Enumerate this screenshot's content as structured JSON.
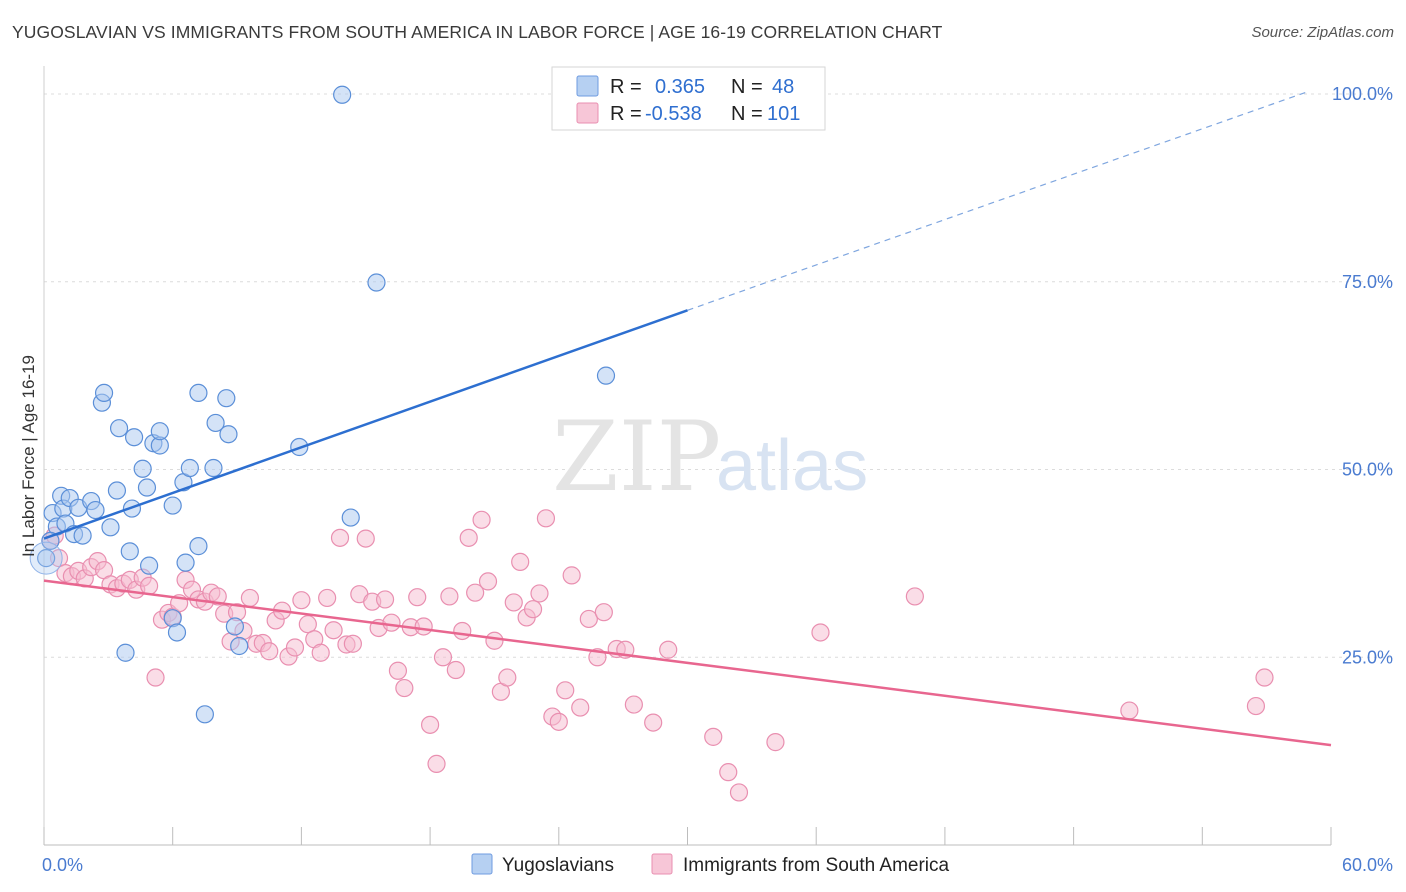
{
  "title": "YUGOSLAVIAN VS IMMIGRANTS FROM SOUTH AMERICA IN LABOR FORCE | AGE 16-19 CORRELATION CHART",
  "source": "Source: ZipAtlas.com",
  "watermark": {
    "zip": "ZIP",
    "atlas": "atlas"
  },
  "chart_data": {
    "type": "scatter",
    "xlabel": "",
    "ylabel": "In Labor Force | Age 16-19",
    "xlim": [
      0,
      60
    ],
    "ylim": [
      0,
      102
    ],
    "x_tick_labels": [
      {
        "value": 0,
        "label": "0.0%"
      },
      {
        "value": 60,
        "label": "60.0%"
      }
    ],
    "y_tick_labels": [
      {
        "value": 25,
        "label": "25.0%"
      },
      {
        "value": 50,
        "label": "50.0%"
      },
      {
        "value": 75,
        "label": "75.0%"
      },
      {
        "value": 100,
        "label": "100.0%"
      }
    ],
    "grid": "horizontal dashed",
    "legend_top": [
      {
        "r_label": "R =",
        "r_value": "0.365",
        "n_label": "N =",
        "n_value": "48",
        "color": "#a9c8f0",
        "stroke": "#6f9be0"
      },
      {
        "r_label": "R =",
        "r_value": "-0.538",
        "n_label": "N =",
        "n_value": "101",
        "color": "#f6bcd0",
        "stroke": "#e98fb0"
      }
    ],
    "series": [
      {
        "name": "Yugoslavians",
        "color": "#a9c8f0",
        "stroke": "#5b8fd8",
        "trend_color": "#2d6fd0",
        "trend": {
          "x0": 0,
          "y0": 40.8,
          "x1": 30,
          "y1": 71.2,
          "dash_to_x": 58.8,
          "dash_to_y": 100.2
        },
        "points": [
          [
            0.4,
            44.2
          ],
          [
            0.6,
            42.4
          ],
          [
            0.8,
            46.5
          ],
          [
            0.9,
            44.8
          ],
          [
            1.0,
            42.8
          ],
          [
            1.2,
            46.2
          ],
          [
            1.4,
            41.4
          ],
          [
            1.6,
            44.9
          ],
          [
            1.8,
            41.2
          ],
          [
            2.2,
            45.8
          ],
          [
            2.4,
            44.6
          ],
          [
            3.1,
            42.3
          ],
          [
            3.4,
            47.2
          ],
          [
            2.7,
            58.9
          ],
          [
            2.8,
            60.2
          ],
          [
            3.5,
            55.5
          ],
          [
            4.2,
            54.3
          ],
          [
            4.0,
            39.1
          ],
          [
            4.1,
            44.8
          ],
          [
            4.6,
            50.1
          ],
          [
            4.8,
            47.6
          ],
          [
            5.1,
            53.5
          ],
          [
            5.4,
            53.2
          ],
          [
            5.4,
            55.1
          ],
          [
            6.0,
            45.2
          ],
          [
            6.5,
            48.3
          ],
          [
            6.8,
            50.2
          ],
          [
            7.2,
            60.2
          ],
          [
            7.9,
            50.2
          ],
          [
            8.0,
            56.2
          ],
          [
            8.5,
            59.5
          ],
          [
            8.6,
            54.7
          ],
          [
            6.6,
            37.6
          ],
          [
            7.2,
            39.8
          ],
          [
            4.9,
            37.2
          ],
          [
            6.0,
            30.2
          ],
          [
            6.2,
            28.3
          ],
          [
            3.8,
            25.6
          ],
          [
            8.9,
            29.1
          ],
          [
            9.1,
            26.5
          ],
          [
            7.5,
            17.4
          ],
          [
            11.9,
            53.0
          ],
          [
            14.3,
            43.6
          ],
          [
            13.9,
            99.9
          ],
          [
            15.5,
            74.9
          ],
          [
            26.2,
            62.5
          ],
          [
            0.1,
            38.2
          ],
          [
            0.3,
            40.5
          ]
        ]
      },
      {
        "name": "Immigrants from South America",
        "color": "#f6bcd0",
        "stroke": "#e98fb0",
        "trend_color": "#e8668f",
        "trend": {
          "x0": 0,
          "y0": 35.2,
          "x1": 60,
          "y1": 13.3
        },
        "points": [
          [
            0.3,
            40.5
          ],
          [
            0.5,
            41.2
          ],
          [
            0.7,
            38.2
          ],
          [
            1.0,
            36.2
          ],
          [
            1.3,
            35.8
          ],
          [
            1.6,
            36.5
          ],
          [
            1.9,
            35.5
          ],
          [
            2.2,
            37.0
          ],
          [
            2.5,
            37.8
          ],
          [
            2.8,
            36.6
          ],
          [
            3.1,
            34.7
          ],
          [
            3.4,
            34.2
          ],
          [
            3.7,
            34.8
          ],
          [
            4.0,
            35.3
          ],
          [
            4.3,
            34.0
          ],
          [
            4.6,
            35.6
          ],
          [
            4.9,
            34.5
          ],
          [
            5.2,
            22.3
          ],
          [
            5.5,
            30.0
          ],
          [
            5.8,
            30.9
          ],
          [
            6.0,
            30.4
          ],
          [
            6.3,
            32.2
          ],
          [
            6.6,
            35.3
          ],
          [
            6.9,
            34.0
          ],
          [
            7.2,
            32.7
          ],
          [
            7.5,
            32.4
          ],
          [
            7.8,
            33.6
          ],
          [
            8.1,
            33.1
          ],
          [
            8.4,
            30.8
          ],
          [
            8.7,
            27.1
          ],
          [
            9.0,
            31.0
          ],
          [
            9.3,
            28.5
          ],
          [
            9.6,
            32.9
          ],
          [
            9.9,
            26.8
          ],
          [
            10.2,
            26.9
          ],
          [
            10.5,
            25.8
          ],
          [
            10.8,
            29.9
          ],
          [
            11.1,
            31.2
          ],
          [
            11.4,
            25.1
          ],
          [
            11.7,
            26.3
          ],
          [
            12.0,
            32.6
          ],
          [
            12.3,
            29.4
          ],
          [
            12.6,
            27.4
          ],
          [
            12.9,
            25.6
          ],
          [
            13.2,
            32.9
          ],
          [
            13.5,
            28.6
          ],
          [
            13.8,
            40.9
          ],
          [
            14.1,
            26.7
          ],
          [
            14.4,
            26.8
          ],
          [
            14.7,
            33.4
          ],
          [
            15.0,
            40.8
          ],
          [
            15.3,
            32.4
          ],
          [
            15.6,
            28.9
          ],
          [
            15.9,
            32.7
          ],
          [
            16.2,
            29.6
          ],
          [
            16.5,
            23.2
          ],
          [
            16.8,
            20.9
          ],
          [
            17.1,
            29.0
          ],
          [
            17.4,
            33.0
          ],
          [
            17.7,
            29.1
          ],
          [
            18.0,
            16.0
          ],
          [
            18.3,
            10.8
          ],
          [
            18.6,
            25.0
          ],
          [
            18.9,
            33.1
          ],
          [
            19.2,
            23.3
          ],
          [
            19.5,
            28.5
          ],
          [
            19.8,
            40.9
          ],
          [
            20.1,
            33.6
          ],
          [
            20.4,
            43.3
          ],
          [
            20.7,
            35.1
          ],
          [
            21.0,
            27.2
          ],
          [
            21.3,
            20.4
          ],
          [
            21.6,
            22.3
          ],
          [
            21.9,
            32.3
          ],
          [
            22.2,
            37.7
          ],
          [
            22.5,
            30.3
          ],
          [
            22.8,
            31.4
          ],
          [
            23.1,
            33.5
          ],
          [
            23.4,
            43.5
          ],
          [
            23.7,
            17.1
          ],
          [
            24.0,
            16.4
          ],
          [
            24.3,
            20.6
          ],
          [
            24.6,
            35.9
          ],
          [
            25.0,
            18.3
          ],
          [
            25.4,
            30.1
          ],
          [
            25.8,
            25.0
          ],
          [
            26.1,
            31.0
          ],
          [
            26.7,
            26.1
          ],
          [
            27.1,
            26.0
          ],
          [
            27.5,
            18.7
          ],
          [
            28.4,
            16.3
          ],
          [
            29.1,
            26.0
          ],
          [
            31.2,
            14.4
          ],
          [
            31.9,
            9.7
          ],
          [
            32.4,
            7.0
          ],
          [
            34.1,
            13.7
          ],
          [
            36.2,
            28.3
          ],
          [
            40.6,
            33.1
          ],
          [
            50.6,
            17.9
          ],
          [
            56.5,
            18.5
          ],
          [
            56.9,
            22.3
          ]
        ]
      }
    ]
  }
}
